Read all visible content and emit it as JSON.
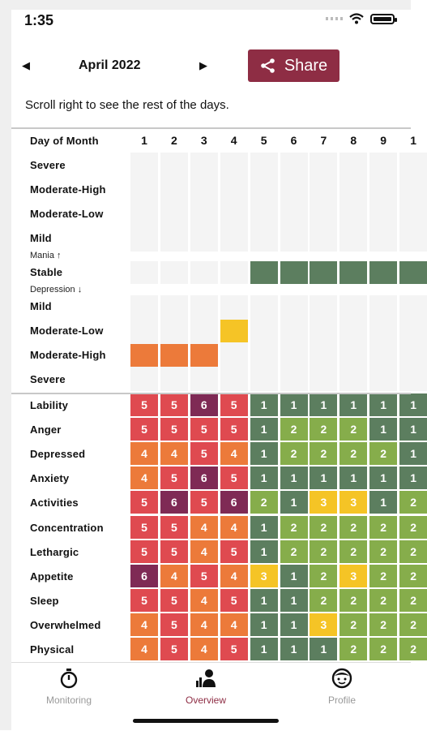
{
  "status": {
    "time": "1:35"
  },
  "header": {
    "month": "April 2022",
    "share_label": "Share"
  },
  "hint": "Scroll right to see the rest of the days.",
  "grid": {
    "day_header": "Day of Month",
    "days": [
      "1",
      "2",
      "3",
      "4",
      "5",
      "6",
      "7",
      "8",
      "9",
      "1"
    ],
    "mood_labels": [
      "Severe",
      "Moderate-High",
      "Moderate-Low",
      "Mild",
      "Stable",
      "Mild",
      "Moderate-Low",
      "Moderate-High",
      "Severe"
    ],
    "mania_label": "Mania ↑",
    "depression_label": "Depression ↓",
    "mood_cells": [
      {
        "day": 0,
        "level": "Moderate-High",
        "side": "depression"
      },
      {
        "day": 1,
        "level": "Moderate-High",
        "side": "depression"
      },
      {
        "day": 2,
        "level": "Moderate-High",
        "side": "depression"
      },
      {
        "day": 3,
        "level": "Moderate-Low",
        "side": "depression"
      },
      {
        "day": 4,
        "level": "Stable"
      },
      {
        "day": 5,
        "level": "Stable"
      },
      {
        "day": 6,
        "level": "Stable"
      },
      {
        "day": 7,
        "level": "Stable"
      },
      {
        "day": 8,
        "level": "Stable"
      },
      {
        "day": 9,
        "level": "Stable"
      }
    ],
    "symptoms": [
      {
        "name": "Lability",
        "values": [
          "5",
          "5",
          "6",
          "5",
          "1",
          "1",
          "1",
          "1",
          "1",
          "1"
        ]
      },
      {
        "name": "Anger",
        "values": [
          "5",
          "5",
          "5",
          "5",
          "1",
          "2",
          "2",
          "2",
          "1",
          "1"
        ]
      },
      {
        "name": "Depressed",
        "values": [
          "4",
          "4",
          "5",
          "4",
          "1",
          "2",
          "2",
          "2",
          "2",
          "1"
        ]
      },
      {
        "name": "Anxiety",
        "values": [
          "4",
          "5",
          "6",
          "5",
          "1",
          "1",
          "1",
          "1",
          "1",
          "1"
        ]
      },
      {
        "name": "Activities",
        "values": [
          "5",
          "6",
          "5",
          "6",
          "2",
          "1",
          "3",
          "3",
          "1",
          "2"
        ]
      },
      {
        "name": "Concentration",
        "values": [
          "5",
          "5",
          "4",
          "4",
          "1",
          "2",
          "2",
          "2",
          "2",
          "2"
        ]
      },
      {
        "name": "Lethargic",
        "values": [
          "5",
          "5",
          "4",
          "5",
          "1",
          "2",
          "2",
          "2",
          "2",
          "2"
        ]
      },
      {
        "name": "Appetite",
        "values": [
          "6",
          "4",
          "5",
          "4",
          "3",
          "1",
          "2",
          "3",
          "2",
          "2"
        ]
      },
      {
        "name": "Sleep",
        "values": [
          "5",
          "5",
          "4",
          "5",
          "1",
          "1",
          "2",
          "2",
          "2",
          "2"
        ]
      },
      {
        "name": "Overwhelmed",
        "values": [
          "4",
          "5",
          "4",
          "4",
          "1",
          "1",
          "3",
          "2",
          "2",
          "2"
        ]
      },
      {
        "name": "Physical",
        "values": [
          "4",
          "5",
          "4",
          "5",
          "1",
          "1",
          "1",
          "2",
          "2",
          "2"
        ]
      }
    ],
    "colors": {
      "1": "#5c7e5f",
      "2": "#86ad4b",
      "3": "#f5c426",
      "4": "#ec7a3a",
      "5": "#df4a50",
      "6": "#7f2a55",
      "mood_stable": "#5c7e5f",
      "mood_mod_high": "#ec7a3a",
      "mood_mod_low": "#f5c426"
    }
  },
  "tabs": [
    {
      "label": "Monitoring",
      "icon": "stopwatch-icon"
    },
    {
      "label": "Overview",
      "icon": "person-chart-icon"
    },
    {
      "label": "Profile",
      "icon": "face-icon"
    }
  ],
  "accent": "#8e2d44"
}
